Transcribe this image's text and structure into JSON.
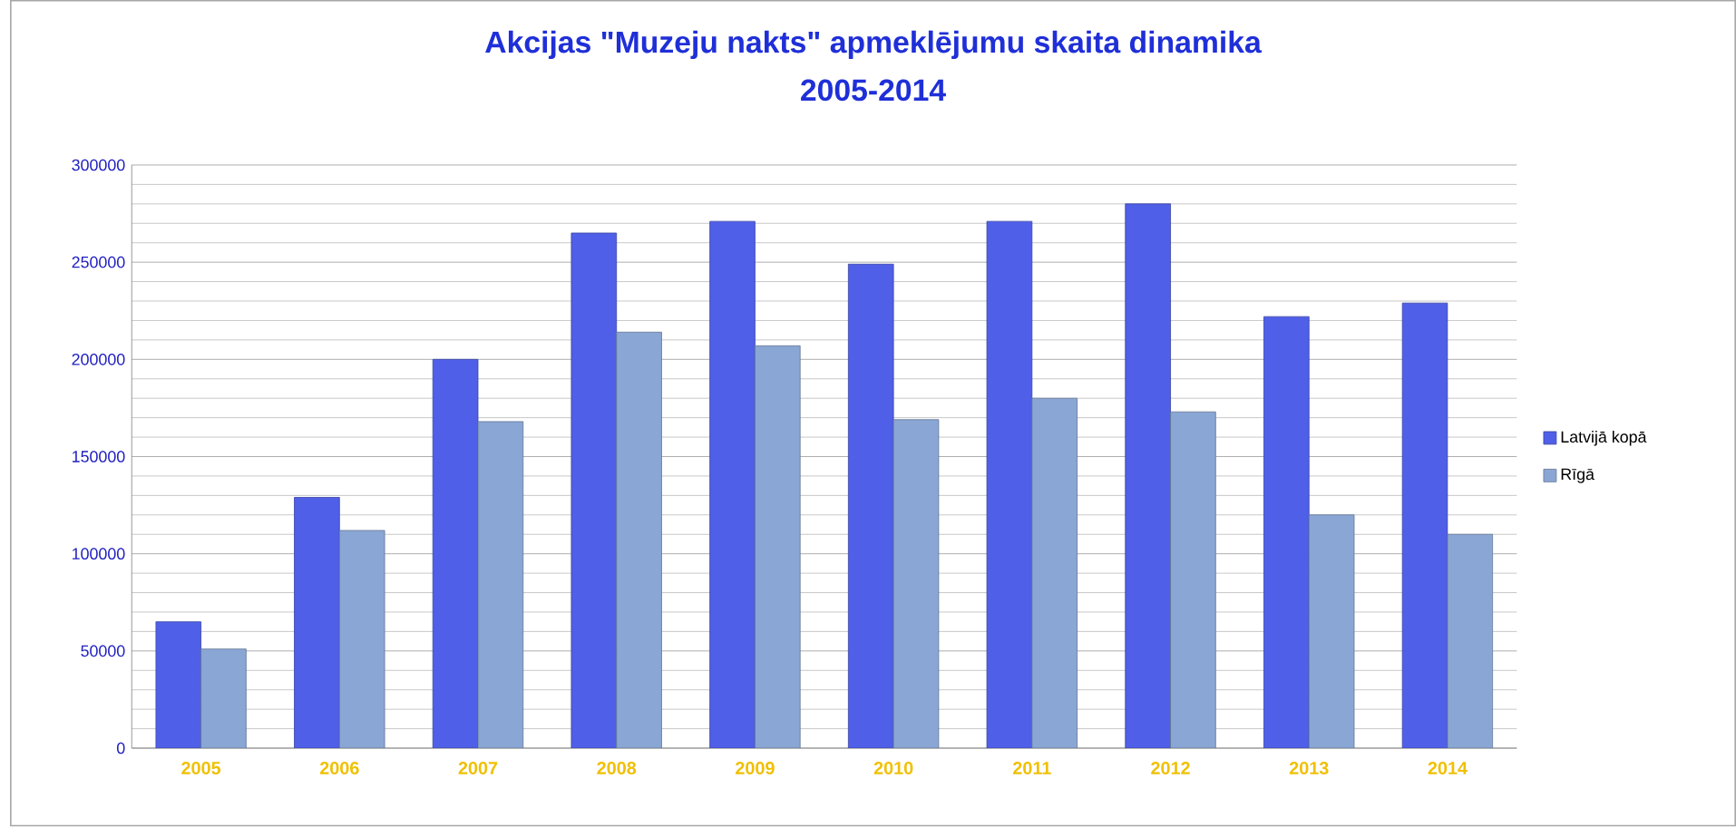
{
  "chart_data": {
    "type": "bar",
    "title": "Akcijas \"Muzeju nakts\" apmeklējumu skaita dinamika",
    "subtitle": "2005-2014",
    "categories": [
      "2005",
      "2006",
      "2007",
      "2008",
      "2009",
      "2010",
      "2011",
      "2012",
      "2013",
      "2014"
    ],
    "series": [
      {
        "name": "Latvijā kopā",
        "color": "#4f5fe8",
        "values": [
          65000,
          129000,
          200000,
          265000,
          271000,
          249000,
          271000,
          280000,
          222000,
          229000
        ]
      },
      {
        "name": "Rīgā",
        "color": "#8aa6d4",
        "values": [
          51000,
          112000,
          168000,
          214000,
          207000,
          169000,
          180000,
          173000,
          120000,
          110000
        ]
      }
    ],
    "ylim": [
      0,
      300000
    ],
    "yticks": [
      0,
      50000,
      100000,
      150000,
      200000,
      250000,
      300000
    ],
    "grid": "y",
    "legend": "right"
  }
}
